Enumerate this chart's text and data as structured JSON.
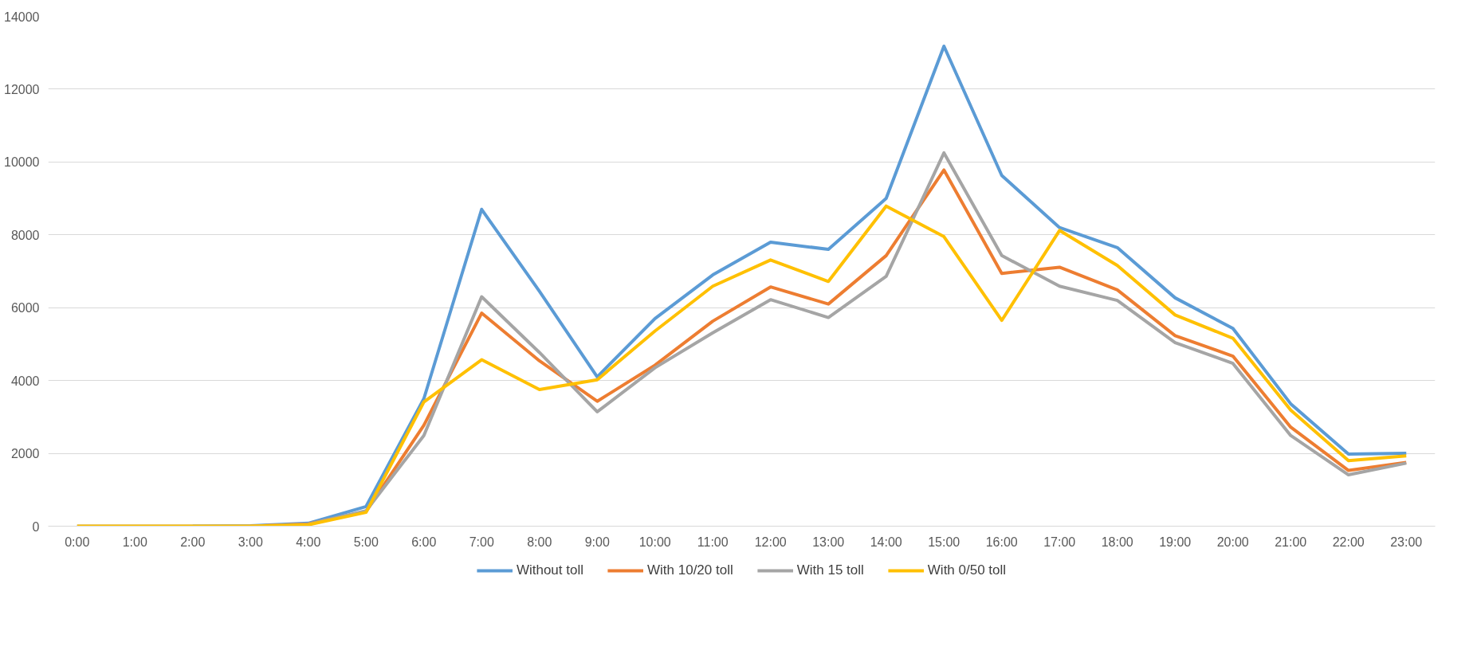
{
  "chart_data": {
    "type": "line",
    "categories": [
      "0:00",
      "1:00",
      "2:00",
      "3:00",
      "4:00",
      "5:00",
      "6:00",
      "7:00",
      "8:00",
      "9:00",
      "10:00",
      "11:00",
      "12:00",
      "13:00",
      "14:00",
      "15:00",
      "16:00",
      "17:00",
      "18:00",
      "19:00",
      "20:00",
      "21:00",
      "22:00",
      "23:00"
    ],
    "series": [
      {
        "name": "Without toll",
        "color": "#5b9bd5",
        "values": [
          null,
          null,
          0,
          10,
          80,
          540,
          3500,
          8700,
          6450,
          4100,
          5700,
          6900,
          7800,
          7600,
          9000,
          13180,
          9630,
          8200,
          7650,
          6270,
          5430,
          3360,
          1980,
          2000
        ]
      },
      {
        "name": "With 10/20 toll",
        "color": "#ed7d31",
        "values": [
          null,
          null,
          null,
          0,
          60,
          400,
          2770,
          5850,
          4540,
          3430,
          4420,
          5630,
          6570,
          6100,
          7430,
          9780,
          6940,
          7110,
          6490,
          5230,
          4670,
          2720,
          1530,
          1750
        ]
      },
      {
        "name": "With 15 toll",
        "color": "#a5a5a5",
        "values": [
          0,
          0,
          0,
          0,
          50,
          420,
          2490,
          6300,
          4770,
          3140,
          4350,
          5310,
          6220,
          5730,
          6860,
          10250,
          7430,
          6590,
          6200,
          5040,
          4470,
          2490,
          1410,
          1730
        ]
      },
      {
        "name": "With 0/50 toll",
        "color": "#ffc000",
        "values": [
          0,
          0,
          0,
          0,
          40,
          380,
          3410,
          4570,
          3750,
          4020,
          5360,
          6590,
          7310,
          6720,
          8790,
          7950,
          5650,
          8120,
          7160,
          5800,
          5160,
          3190,
          1800,
          1930
        ]
      }
    ],
    "ylim": [
      0,
      14000
    ],
    "yticks": [
      0,
      2000,
      4000,
      6000,
      8000,
      10000,
      12000,
      14000
    ],
    "grid": "y",
    "legend": "bottom",
    "marker": "none",
    "line_style": "solid"
  }
}
